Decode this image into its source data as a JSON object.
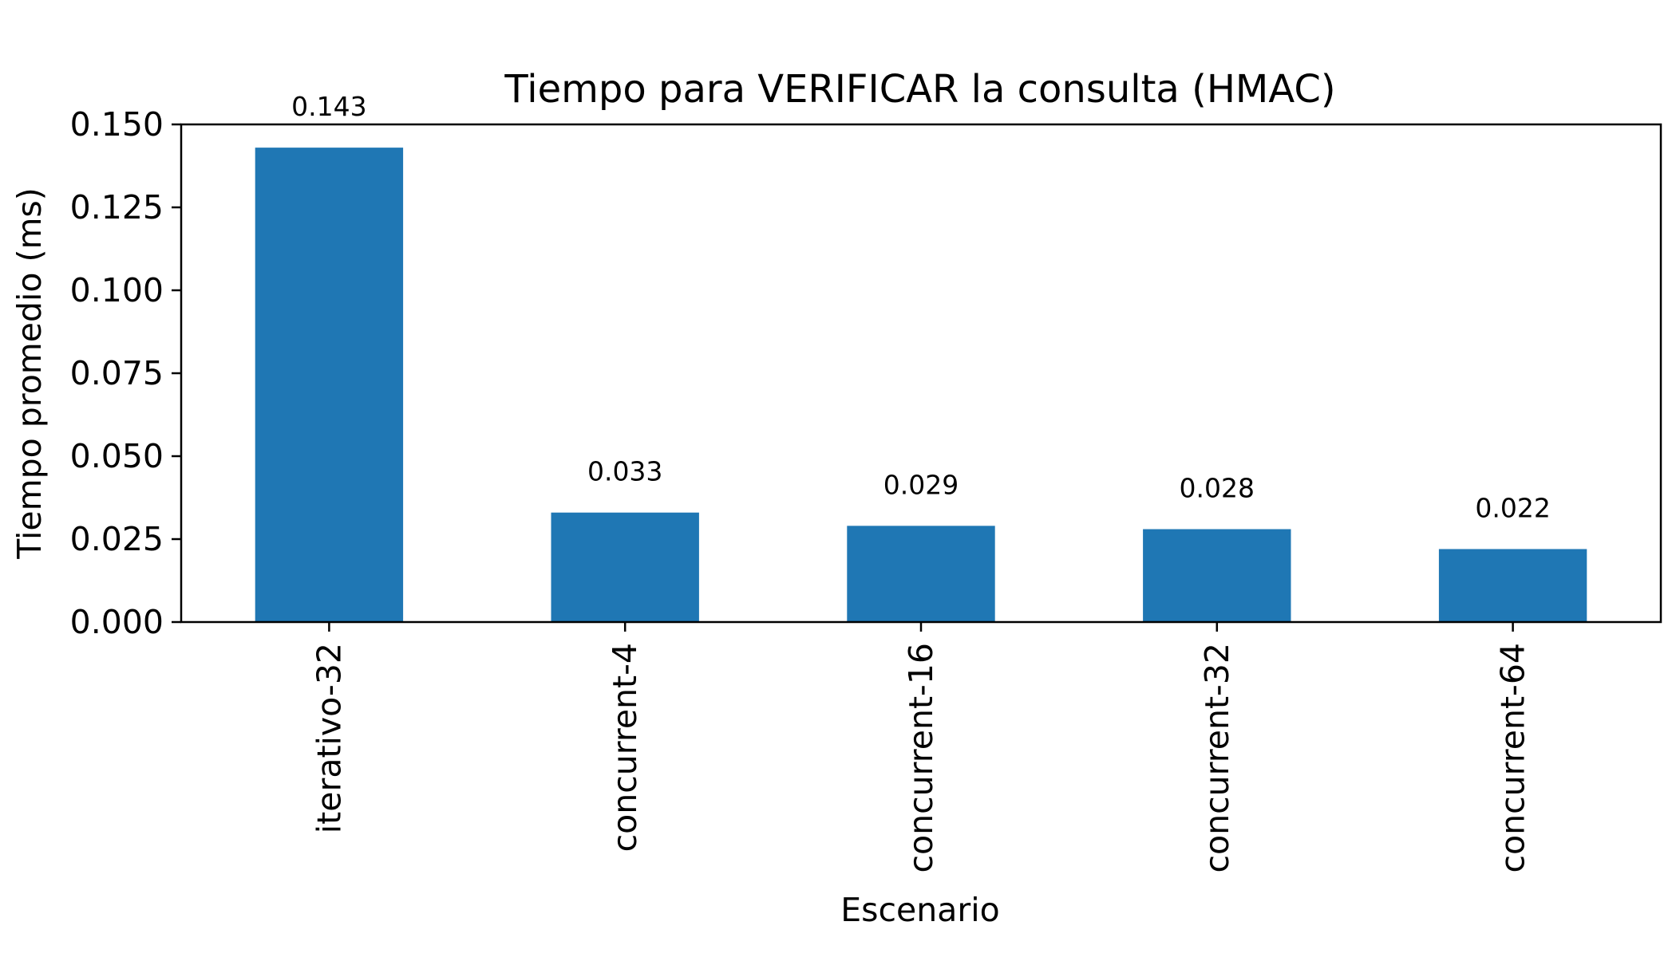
{
  "chart_data": {
    "type": "bar",
    "title": "Tiempo para VERIFICAR la consulta (HMAC)",
    "xlabel": "Escenario",
    "ylabel": "Tiempo promedio (ms)",
    "categories": [
      "iterativo-32",
      "concurrent-4",
      "concurrent-16",
      "concurrent-32",
      "concurrent-64"
    ],
    "values": [
      0.143,
      0.033,
      0.029,
      0.028,
      0.022
    ],
    "value_labels": [
      "0.143",
      "0.033",
      "0.029",
      "0.028",
      "0.022"
    ],
    "ylim": [
      0,
      0.15
    ],
    "yticks": [
      0,
      0.025,
      0.05,
      0.075,
      0.1,
      0.125,
      0.15
    ],
    "ytick_labels": [
      "0.000",
      "0.025",
      "0.050",
      "0.075",
      "0.100",
      "0.125",
      "0.150"
    ],
    "bar_color": "#1f77b4",
    "grid": false,
    "legend": "none"
  }
}
